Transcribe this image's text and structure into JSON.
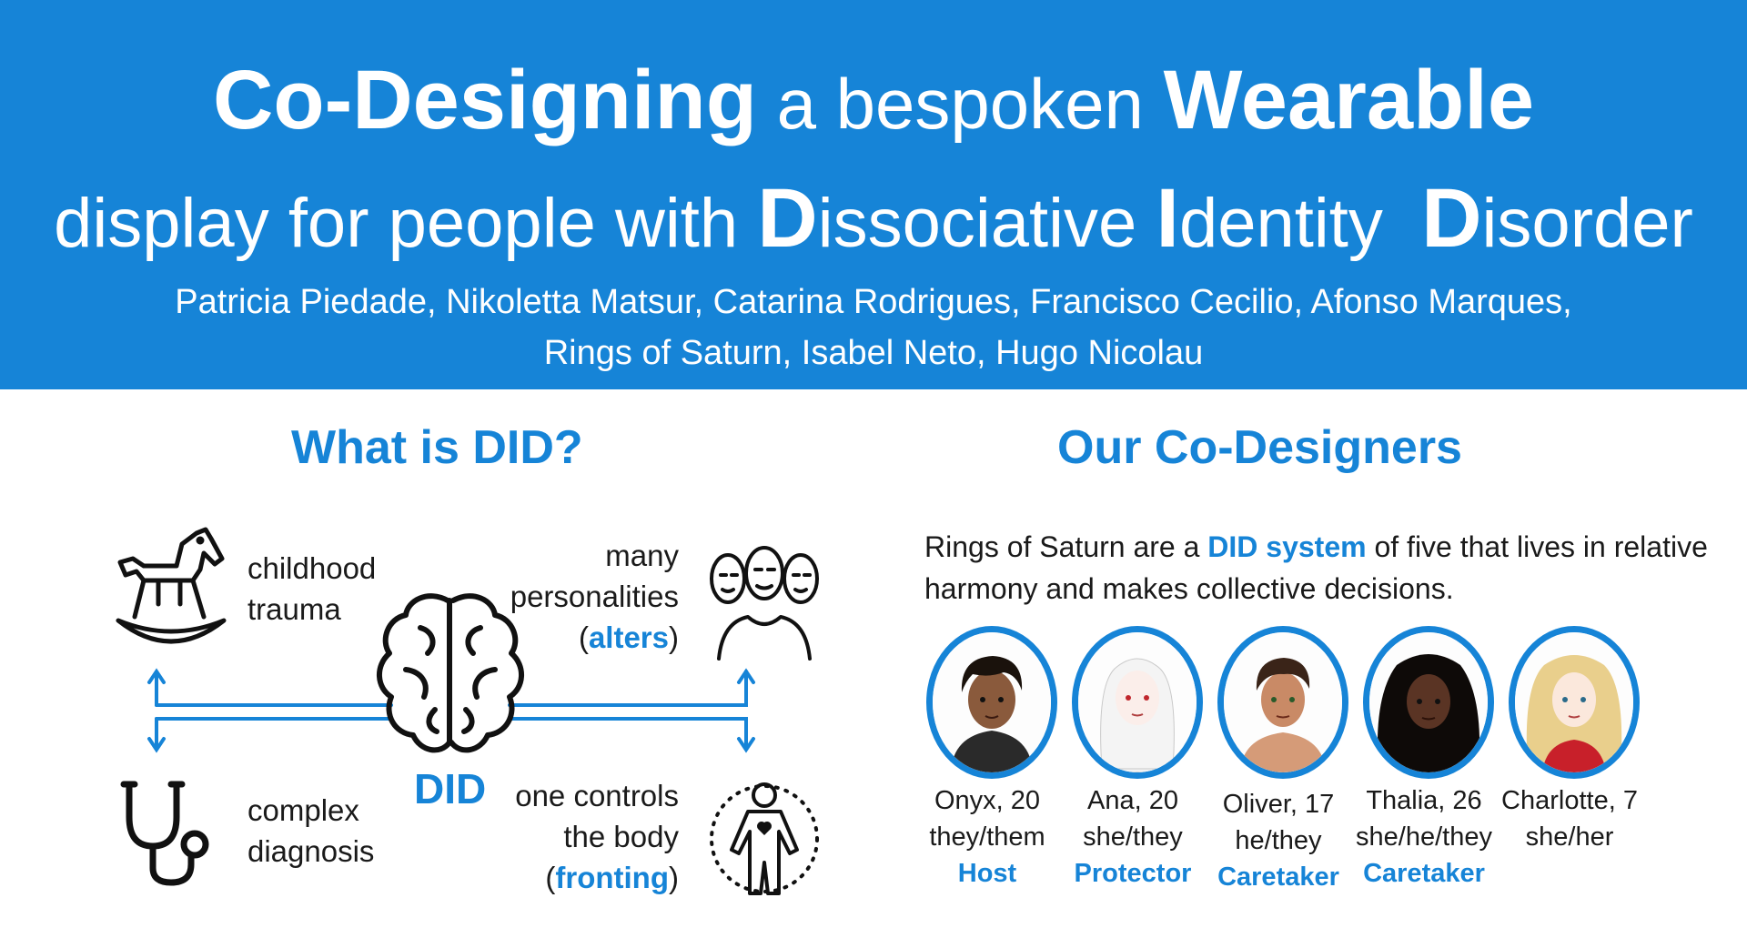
{
  "header": {
    "title1_a": "Co-Designing",
    "title1_b": " a bespoken ",
    "title1_c": "Wearable",
    "title2_a": "display for people with ",
    "title2_d1": "D",
    "title2_b": "issociative ",
    "title2_i": "I",
    "title2_c": "dentity  ",
    "title2_d2": "D",
    "title2_e": "isorder",
    "authors1": "Patricia Piedade, Nikoletta Matsur, Catarina Rodrigues, Francisco Cecilio, Afonso Marques,",
    "authors2": "Rings of Saturn, Isabel Neto, Hugo Nicolau"
  },
  "did": {
    "title": "What is DID?",
    "center_label": "DID",
    "childhood1": "childhood",
    "childhood2": "trauma",
    "many1": "many",
    "many2": "personalities",
    "many3_open": "(",
    "many3_blue": "alters",
    "many3_close": ")",
    "complex1": "complex",
    "complex2": "diagnosis",
    "control1": "one controls",
    "control2": "the body",
    "control3_open": "(",
    "control3_blue": "fronting",
    "control3_close": ")"
  },
  "codesigners": {
    "title": "Our Co-Designers",
    "intro_a": "Rings of Saturn are a ",
    "intro_blue": "DID system",
    "intro_b": " of five that lives in relative harmony and makes collective decisions.",
    "members": [
      {
        "name": "Onyx, 20",
        "pronouns": "they/them",
        "role": "Host"
      },
      {
        "name": "Ana, 20",
        "pronouns": "she/they",
        "role": "Protector"
      },
      {
        "name": "Oliver, 17",
        "pronouns": "he/they",
        "role": "Caretaker"
      },
      {
        "name": "Thalia, 26",
        "pronouns": "she/he/they",
        "role": "Caretaker"
      },
      {
        "name": "Charlotte, 7",
        "pronouns": "she/her",
        "role": ""
      }
    ]
  },
  "colors": {
    "accent": "#1684d7",
    "text": "#1a1a1a",
    "background": "#ffffff"
  }
}
